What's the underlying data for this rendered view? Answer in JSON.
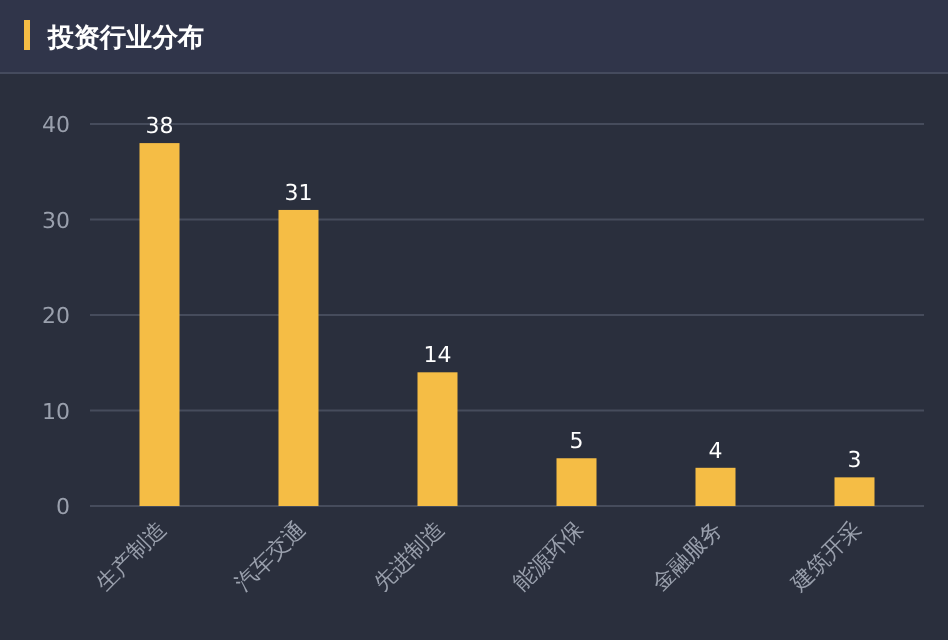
{
  "chart_data": {
    "type": "bar",
    "title": "投资行业分布",
    "categories": [
      "生产制造",
      "汽车交通",
      "先进制造",
      "能源环保",
      "金融服务",
      "建筑开采"
    ],
    "values": [
      38,
      31,
      14,
      5,
      4,
      3
    ],
    "color": "#f5bd45",
    "ylim": [
      0,
      40
    ],
    "yticks": [
      0,
      10,
      20,
      30,
      40
    ],
    "grid": "y",
    "data_labels": true
  }
}
